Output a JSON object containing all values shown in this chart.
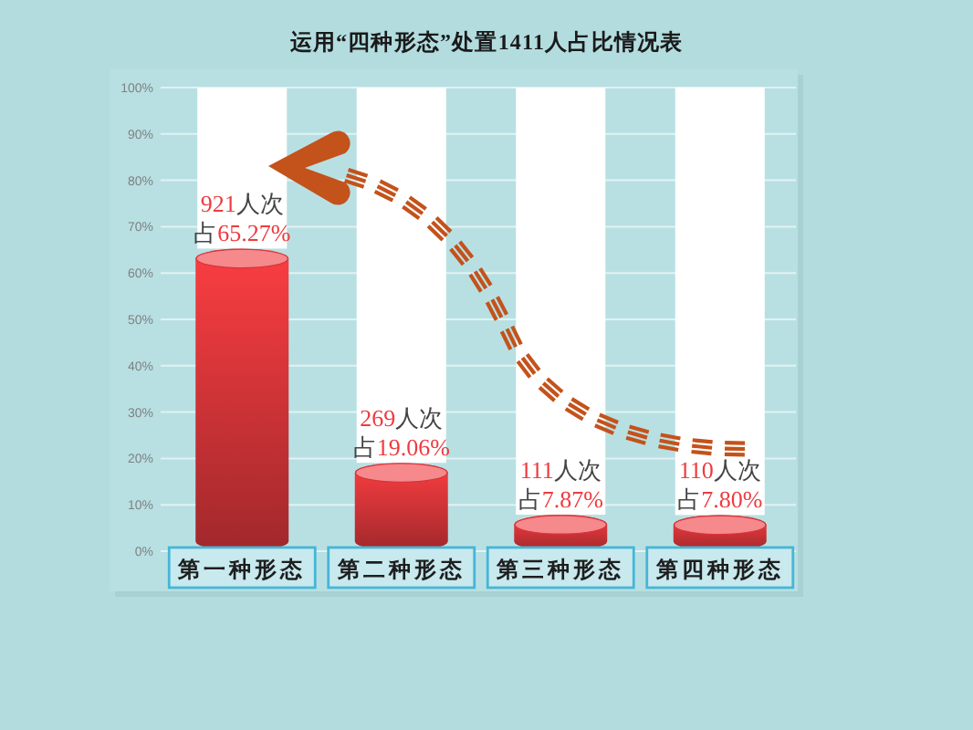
{
  "chart_data": {
    "type": "bar",
    "title": "运用“四种形态”处置1411人占比情况表",
    "categories": [
      "第一种形态",
      "第二种形态",
      "第三种形态",
      "第四种形态"
    ],
    "stacked": true,
    "series": [
      {
        "color": "#ee3b3f",
        "values": [
          65.27,
          19.06,
          7.87,
          7.8
        ],
        "value_labels": [
          "921人次占65.27%",
          "269人次占19.06%",
          "111人次占7.87%",
          "110人次占7.80%"
        ]
      },
      {
        "color": "#ffffff",
        "values": [
          34.7,
          80.9,
          92.1,
          92.2
        ]
      }
    ],
    "ylim": [
      0,
      100
    ],
    "yticks": [
      {
        "value": 0,
        "label": "0%"
      },
      {
        "value": 10,
        "label": "10%"
      },
      {
        "value": 20,
        "label": "20%"
      },
      {
        "value": 30,
        "label": "30%"
      },
      {
        "value": 40,
        "label": "40%"
      },
      {
        "value": 50,
        "label": "50%"
      },
      {
        "value": 60,
        "label": "60%"
      },
      {
        "value": 70,
        "label": "70%"
      },
      {
        "value": 80,
        "label": "80%"
      },
      {
        "value": 90,
        "label": "90%"
      },
      {
        "value": 100,
        "label": "100%"
      }
    ],
    "grid": "y"
  }
}
